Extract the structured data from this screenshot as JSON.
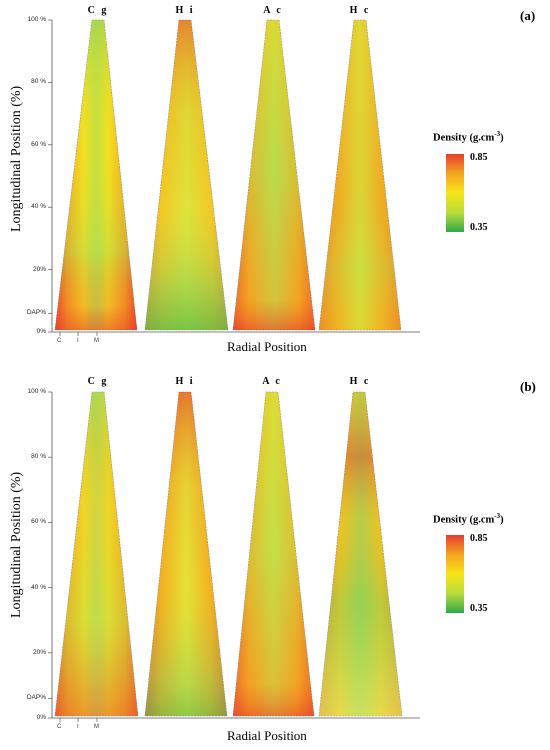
{
  "chart_data": [
    {
      "type": "heatmap",
      "panel": "(a)",
      "categories": [
        "C g",
        "H i",
        "A c",
        "H c"
      ],
      "ylabel": "Longitudinal Position (%)",
      "xlabel": "Radial Position",
      "y_ticks": [
        "0%",
        "DAP%",
        "20%",
        "40 %",
        "60 %",
        "80 %",
        "100 %"
      ],
      "y_tick_values": [
        0,
        6,
        20,
        40,
        60,
        80,
        100
      ],
      "x_ticks": [
        "C",
        "I",
        "M"
      ],
      "legend": {
        "title": "Density (g.cm",
        "title_sup": "-3",
        "title_end": ")",
        "max": "0.85",
        "min": "0.35",
        "max_value": 0.85,
        "min_value": 0.35
      },
      "colors": {
        "high": "#e83c2e",
        "mid_high": "#f3a521",
        "mid": "#f7e61a",
        "mid_low": "#b8dc3c",
        "low": "#2fa84a"
      }
    },
    {
      "type": "heatmap",
      "panel": "(b)",
      "categories": [
        "C g",
        "H i",
        "A c",
        "H c"
      ],
      "ylabel": "Longitudinal Position (%)",
      "xlabel": "Radial Position",
      "y_ticks": [
        "0%",
        "DAP%",
        "20%",
        "40 %",
        "60 %",
        "80 %",
        "100 %"
      ],
      "y_tick_values": [
        0,
        6,
        20,
        40,
        60,
        80,
        100
      ],
      "x_ticks": [
        "C",
        "I",
        "M"
      ],
      "legend": {
        "title": "Density (g.cm",
        "title_sup": "-3",
        "title_end": ")",
        "max": "0.85",
        "min": "0.35",
        "max_value": 0.85,
        "min_value": 0.35
      },
      "colors": {
        "high": "#e83c2e",
        "mid_high": "#f3a521",
        "mid": "#f7e61a",
        "mid_low": "#b8dc3c",
        "low": "#2fa84a"
      }
    }
  ]
}
